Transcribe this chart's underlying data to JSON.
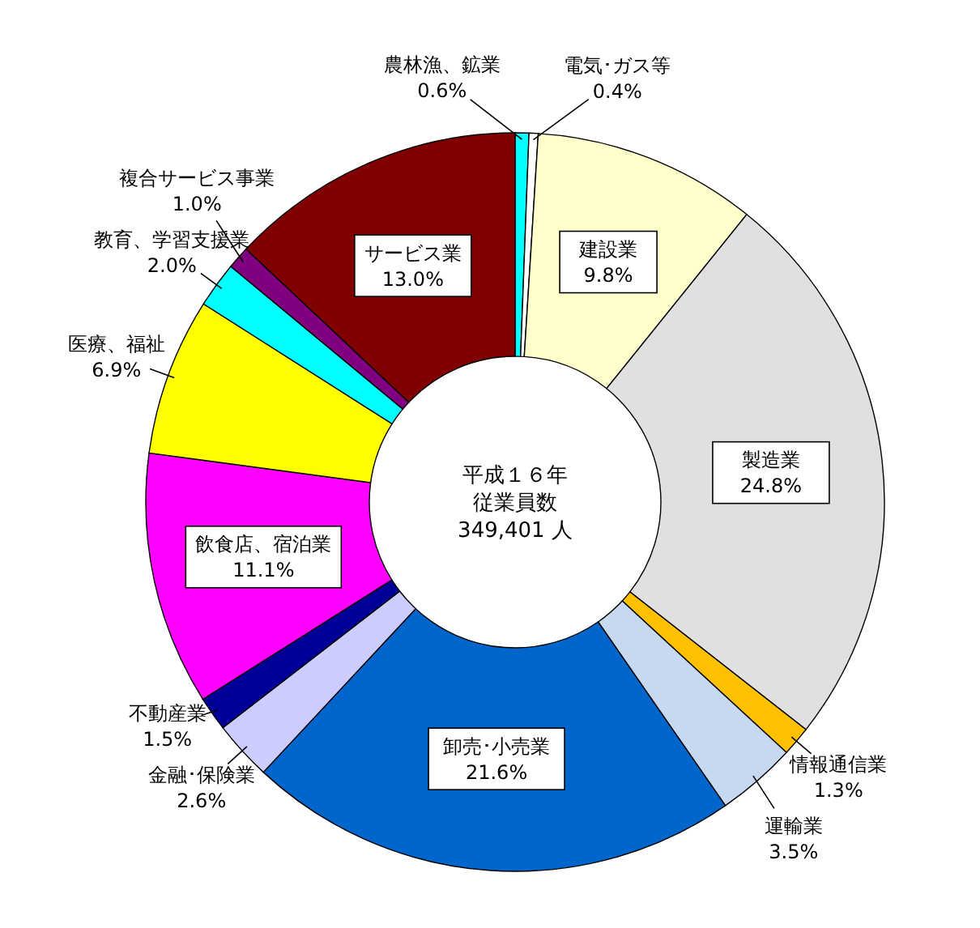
{
  "chart_data": {
    "type": "donut",
    "title": "平成１６年",
    "subtitle": "従業員数",
    "annotations": [
      "349,401 人"
    ],
    "categories": [
      "農林漁、鉱業",
      "電気･ガス等",
      "建設業",
      "製造業",
      "情報通信業",
      "運輸業",
      "卸売･小売業",
      "金融･保険業",
      "不動産業",
      "飲食店、宿泊業",
      "医療、福祉",
      "教育、学習支援業",
      "複合サービス事業",
      "サービス業"
    ],
    "values": [
      0.6,
      0.4,
      9.8,
      24.8,
      1.3,
      3.5,
      21.6,
      2.6,
      1.5,
      11.1,
      6.9,
      2.0,
      1.0,
      13.0
    ],
    "value_labels": [
      "0.6%",
      "0.4%",
      "9.8%",
      "24.8%",
      "1.3%",
      "3.5%",
      "21.6%",
      "2.6%",
      "1.5%",
      "11.1%",
      "6.9%",
      "2.0%",
      "1.0%",
      "13.0%"
    ],
    "colors": [
      "#00ffff",
      "#ffffff",
      "#ffffcc",
      "#e0e0e0",
      "#ffc000",
      "#c6d9f1",
      "#0066cc",
      "#ccccff",
      "#000099",
      "#ff00ff",
      "#ffff00",
      "#00ffff",
      "#800080",
      "#800000"
    ]
  }
}
